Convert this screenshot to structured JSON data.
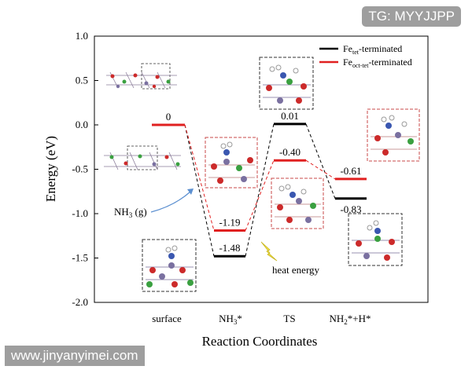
{
  "chart_data": {
    "type": "line",
    "xlabel": "Reaction Coordinates",
    "ylabel": "Energy (eV)",
    "ylim": [
      -2.0,
      1.0
    ],
    "yticks": [
      "1.0",
      "0.5",
      "0.0",
      "-0.5",
      "-1.0",
      "-1.5",
      "-2.0"
    ],
    "categories": [
      "surface",
      "NH₃*",
      "TS",
      "NH₂*+H*"
    ],
    "series": [
      {
        "name": "Feₜₑₜ-terminated",
        "color": "#000000",
        "values": [
          0,
          -1.48,
          0.01,
          -0.83
        ],
        "labels": [
          "0",
          "-1.48",
          "0.01",
          "-0.83"
        ]
      },
      {
        "name": "Feₒ꜀ₜ₋ₜₑₜ-terminated",
        "color": "#e02020",
        "values": [
          0,
          -1.19,
          -0.4,
          -0.61
        ],
        "labels": [
          "0",
          "-1.19",
          "-0.40",
          "-0.61"
        ]
      }
    ],
    "legend": "top-right",
    "grid": false,
    "annotations": [
      "NH₃ (g)",
      "heat energy"
    ]
  },
  "legend_labels": {
    "tet": {
      "base": "Fe",
      "sub": "tet",
      "tail": "-terminated"
    },
    "oct": {
      "base": "Fe",
      "sub": "oct-tet",
      "tail": "-terminated"
    }
  },
  "category_labels": {
    "surface": "surface",
    "nh3": {
      "base": "NH",
      "sub": "3",
      "tail": "*"
    },
    "ts": "TS",
    "nh2h": {
      "base": "NH",
      "sub": "2",
      "tail": "*+H*"
    }
  },
  "annotation_labels": {
    "nh3g": {
      "base": "NH",
      "sub": "3",
      "tail": " (g)"
    },
    "heat": "heat energy"
  },
  "watermarks": {
    "top": "TG: MYYJJPP",
    "bottom": "www.jinyanyimei.com"
  }
}
